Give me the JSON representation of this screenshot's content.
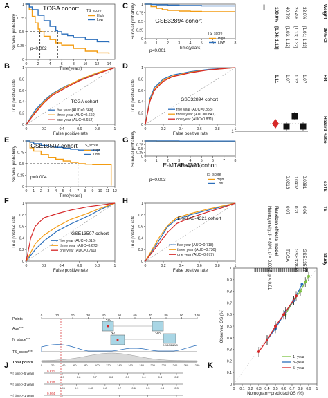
{
  "figure": {
    "panel_letters": [
      "A",
      "B",
      "C",
      "D",
      "E",
      "F",
      "G",
      "H",
      "I",
      "J",
      "K"
    ]
  },
  "chart_data": [
    {
      "panel": "A",
      "type": "line",
      "title": "TCGA cohort",
      "xlabel": "Time(years)",
      "ylabel": "Survival probability",
      "xlim": [
        0,
        15
      ],
      "ylim": [
        0,
        1
      ],
      "xticks": [
        0,
        2,
        4,
        6,
        8,
        10,
        12,
        14
      ],
      "yticks": [
        0,
        0.25,
        0.5,
        0.75,
        1
      ],
      "legend_title": "TS_score",
      "pvalue": "p=0.002",
      "median_lines_x": [
        2.3,
        5.3
      ],
      "series": [
        {
          "name": "High",
          "color": "#f39c12",
          "x": [
            0,
            0.5,
            1,
            1.5,
            2,
            2.3,
            3,
            4,
            5,
            6,
            8,
            10,
            12,
            14
          ],
          "y": [
            1,
            0.9,
            0.78,
            0.66,
            0.55,
            0.5,
            0.42,
            0.36,
            0.3,
            0.26,
            0.2,
            0.15,
            0.12,
            0.1
          ]
        },
        {
          "name": "Low",
          "color": "#2c6fbb",
          "x": [
            0,
            0.5,
            1,
            2,
            3,
            4,
            5,
            5.3,
            6,
            7,
            8,
            10,
            12,
            14
          ],
          "y": [
            1,
            0.95,
            0.9,
            0.8,
            0.7,
            0.6,
            0.52,
            0.5,
            0.46,
            0.43,
            0.4,
            0.36,
            0.32,
            0.3
          ]
        }
      ]
    },
    {
      "panel": "B",
      "type": "line",
      "title": "TCGA cohort",
      "xlabel": "False positive rate",
      "ylabel": "True positive rate",
      "xlim": [
        0,
        1
      ],
      "ylim": [
        0,
        1
      ],
      "xticks": [
        0,
        0.2,
        0.4,
        0.6,
        0.8,
        1
      ],
      "yticks": [
        0,
        0.2,
        0.4,
        0.6,
        0.8,
        1
      ],
      "series": [
        {
          "name": "five year (AUC=0.660)",
          "color": "#2c6fbb",
          "x": [
            0,
            0.1,
            0.2,
            0.3,
            0.45,
            0.6,
            0.8,
            1
          ],
          "y": [
            0,
            0.25,
            0.42,
            0.55,
            0.68,
            0.78,
            0.9,
            1
          ]
        },
        {
          "name": "three year (AUC=0.660)",
          "color": "#f39c12",
          "x": [
            0,
            0.1,
            0.2,
            0.3,
            0.45,
            0.6,
            0.8,
            1
          ],
          "y": [
            0,
            0.22,
            0.4,
            0.54,
            0.67,
            0.79,
            0.91,
            1
          ]
        },
        {
          "name": "one year (AUC=0.652)",
          "color": "#d62728",
          "x": [
            0,
            0.1,
            0.2,
            0.3,
            0.45,
            0.6,
            0.8,
            1
          ],
          "y": [
            0,
            0.2,
            0.38,
            0.52,
            0.65,
            0.77,
            0.89,
            1
          ]
        }
      ]
    },
    {
      "panel": "C",
      "type": "line",
      "title": "GSE32894 cohort",
      "xlabel": "Time(years)",
      "ylabel": "Survival probability",
      "xlim": [
        0,
        8
      ],
      "ylim": [
        0,
        1
      ],
      "xticks": [
        0,
        1,
        2,
        3,
        4,
        5,
        6,
        7,
        8
      ],
      "yticks": [
        0,
        0.25,
        0.5,
        0.75,
        1
      ],
      "legend_title": "TS_score",
      "pvalue": "p<0.001",
      "series": [
        {
          "name": "High",
          "color": "#f39c12",
          "x": [
            0,
            0.5,
            1,
            1.5,
            2,
            3,
            4,
            5,
            6,
            7,
            8
          ],
          "y": [
            1,
            0.93,
            0.88,
            0.84,
            0.82,
            0.8,
            0.79,
            0.78,
            0.78,
            0.78,
            0.78
          ]
        },
        {
          "name": "Low",
          "color": "#2c6fbb",
          "x": [
            0,
            0.5,
            1,
            2,
            3,
            4,
            5,
            6,
            7,
            8
          ],
          "y": [
            1,
            0.99,
            0.98,
            0.97,
            0.96,
            0.96,
            0.95,
            0.95,
            0.95,
            0.95
          ]
        }
      ]
    },
    {
      "panel": "D",
      "type": "line",
      "title": "GSE32894 cohort",
      "xlabel": "False positive rate",
      "ylabel": "True positive rate",
      "xlim": [
        0,
        1
      ],
      "ylim": [
        0,
        1
      ],
      "xticks": [
        0,
        0.2,
        0.4,
        0.6,
        0.8,
        1
      ],
      "yticks": [
        0,
        0.2,
        0.4,
        0.6,
        0.8,
        1
      ],
      "series": [
        {
          "name": "five year (AUC=0.858)",
          "color": "#2c6fbb",
          "x": [
            0,
            0.05,
            0.1,
            0.2,
            0.3,
            0.5,
            0.7,
            1
          ],
          "y": [
            0,
            0.45,
            0.65,
            0.8,
            0.87,
            0.93,
            0.97,
            1
          ]
        },
        {
          "name": "three year (AUC=0.841)",
          "color": "#f39c12",
          "x": [
            0,
            0.05,
            0.1,
            0.2,
            0.3,
            0.5,
            0.7,
            1
          ],
          "y": [
            0,
            0.42,
            0.62,
            0.78,
            0.85,
            0.92,
            0.96,
            1
          ]
        },
        {
          "name": "one year (AUC=0.831)",
          "color": "#d62728",
          "x": [
            0,
            0.05,
            0.1,
            0.2,
            0.3,
            0.5,
            0.7,
            1
          ],
          "y": [
            0,
            0.4,
            0.6,
            0.76,
            0.84,
            0.91,
            0.96,
            1
          ]
        }
      ]
    },
    {
      "panel": "E",
      "type": "line",
      "title": "GSE13507 cohort",
      "xlabel": "Time(years)",
      "ylabel": "Survival probability",
      "xlim": [
        0,
        12
      ],
      "ylim": [
        0,
        1
      ],
      "xticks": [
        0,
        1,
        2,
        3,
        4,
        5,
        6,
        7,
        8,
        9,
        10,
        11,
        12
      ],
      "yticks": [
        0,
        0.25,
        0.5,
        0.75,
        1
      ],
      "legend_title": "TS_score",
      "pvalue": "p=0.004",
      "median_lines_x": [
        7
      ],
      "series": [
        {
          "name": "High",
          "color": "#f39c12",
          "x": [
            0,
            0.5,
            1,
            2,
            3,
            4,
            5,
            6,
            7,
            8,
            9,
            10,
            11,
            11.5
          ],
          "y": [
            1,
            0.85,
            0.78,
            0.7,
            0.64,
            0.6,
            0.56,
            0.53,
            0.5,
            0.49,
            0.48,
            0.48,
            0.48,
            0.02
          ]
        },
        {
          "name": "Low",
          "color": "#2c6fbb",
          "x": [
            0,
            0.5,
            1,
            2,
            3,
            4,
            5,
            6,
            7,
            8,
            9,
            10
          ],
          "y": [
            1,
            0.97,
            0.94,
            0.9,
            0.88,
            0.86,
            0.84,
            0.82,
            0.8,
            0.8,
            0.8,
            0.8
          ]
        }
      ]
    },
    {
      "panel": "F",
      "type": "line",
      "title": "GSE13507 cohort",
      "xlabel": "False positive rate",
      "ylabel": "True positive rate",
      "xlim": [
        0,
        1
      ],
      "ylim": [
        0,
        1
      ],
      "xticks": [
        0,
        0.2,
        0.4,
        0.6,
        0.8,
        1
      ],
      "yticks": [
        0,
        0.2,
        0.4,
        0.6,
        0.8,
        1
      ],
      "series": [
        {
          "name": "five year (AUC=0.616)",
          "color": "#2c6fbb",
          "x": [
            0,
            0.1,
            0.2,
            0.35,
            0.5,
            0.7,
            0.85,
            1
          ],
          "y": [
            0,
            0.2,
            0.35,
            0.52,
            0.64,
            0.78,
            0.9,
            1
          ]
        },
        {
          "name": "three year (AUC=0.673)",
          "color": "#f39c12",
          "x": [
            0,
            0.1,
            0.2,
            0.35,
            0.5,
            0.7,
            0.85,
            1
          ],
          "y": [
            0,
            0.3,
            0.45,
            0.6,
            0.72,
            0.83,
            0.92,
            1
          ]
        },
        {
          "name": "one year (AUC=0.761)",
          "color": "#d62728",
          "x": [
            0,
            0.05,
            0.1,
            0.2,
            0.35,
            0.5,
            0.7,
            1
          ],
          "y": [
            0,
            0.4,
            0.6,
            0.75,
            0.82,
            0.88,
            0.94,
            1
          ]
        }
      ]
    },
    {
      "panel": "G",
      "type": "line",
      "title": "E-MTAB-4321 cohort",
      "xlabel": "Time(years)",
      "ylabel": "Survival probability",
      "xlim": [
        0,
        8
      ],
      "ylim": [
        0,
        1
      ],
      "xticks": [
        0,
        1,
        2,
        3,
        4,
        5,
        6,
        7,
        8
      ],
      "yticks": [
        0,
        0.25,
        0.5,
        0.75,
        1
      ],
      "legend_title": "TS_score",
      "pvalue": "p=0.003",
      "series": [
        {
          "name": "High",
          "color": "#f39c12",
          "x": [
            0,
            1,
            2,
            3,
            4,
            5,
            6,
            7,
            8
          ],
          "y": [
            1,
            0.98,
            0.97,
            0.96,
            0.95,
            0.95,
            0.94,
            0.94,
            0.94
          ]
        },
        {
          "name": "Low",
          "color": "#2c6fbb",
          "x": [
            0,
            1,
            2,
            3,
            4,
            5,
            6,
            7,
            8
          ],
          "y": [
            1,
            1,
            1,
            0.99,
            0.99,
            0.99,
            0.99,
            0.99,
            0.99
          ]
        }
      ]
    },
    {
      "panel": "H",
      "type": "line",
      "title": "E-MTAB-4321 cohort",
      "xlabel": "False positive rate",
      "ylabel": "True positive rate",
      "xlim": [
        0,
        1
      ],
      "ylim": [
        0,
        1
      ],
      "xticks": [
        0,
        0.2,
        0.4,
        0.6,
        0.8,
        1
      ],
      "yticks": [
        0,
        0.2,
        0.4,
        0.6,
        0.8,
        1
      ],
      "series": [
        {
          "name": "five year (AUC=0.718)",
          "color": "#2c6fbb",
          "x": [
            0,
            0.15,
            0.25,
            0.35,
            0.5,
            0.7,
            0.85,
            1
          ],
          "y": [
            0,
            0.35,
            0.6,
            0.72,
            0.8,
            0.88,
            0.94,
            1
          ]
        },
        {
          "name": "three year (AUC=0.730)",
          "color": "#f39c12",
          "x": [
            0,
            0.15,
            0.25,
            0.35,
            0.5,
            0.7,
            0.85,
            1
          ],
          "y": [
            0,
            0.4,
            0.62,
            0.75,
            0.82,
            0.9,
            0.95,
            1
          ]
        },
        {
          "name": "one year (AUC=0.679)",
          "color": "#d62728",
          "x": [
            0,
            0.15,
            0.25,
            0.35,
            0.5,
            0.7,
            0.85,
            1
          ],
          "y": [
            0,
            0.3,
            0.5,
            0.65,
            0.75,
            0.85,
            0.92,
            1
          ]
        }
      ]
    },
    {
      "panel": "I",
      "type": "table",
      "subtype": "forest_plot",
      "columns": [
        "Study",
        "TE",
        "seTE",
        "Hazard Ratio",
        "HR",
        "95%-CI",
        "Weight"
      ],
      "rows": [
        {
          "study": "GSE13507",
          "te": "0.06",
          "sete": "0.0281",
          "hr": "1.07",
          "ci": "[1.01; 1.13]",
          "weight": "33.0%",
          "value": 1.07
        },
        {
          "study": "GSE32894",
          "te": "0.20",
          "sete": "0.0402",
          "hr": "1.22",
          "ci": "[1.13; 1.32]",
          "weight": "26.4%",
          "value": 1.22
        },
        {
          "study": "TCGA",
          "te": "0.07",
          "sete": "0.0216",
          "hr": "1.07",
          "ci": "[1.03; 1.12]",
          "weight": "40.7%",
          "value": 1.07
        }
      ],
      "pooled": {
        "label": "Random effects model",
        "hr": "1.11",
        "ci": "[1.04; 1.18]",
        "weight": "100.0%",
        "value": 1.11,
        "lo": 1.04,
        "hi": 1.18
      },
      "heterogeneity": "Heterogeneity: I² = 80%, τ² = 0.0025, p < 0.01",
      "axis_ticks": [
        1
      ],
      "axis_label": "Hazard Ratio"
    },
    {
      "panel": "J",
      "type": "table",
      "subtype": "nomogram",
      "rows": [
        "Points",
        "Age***",
        "N_stage***",
        "TS_score***",
        "Total points",
        "Pr( time > 5 year)",
        "Pr( time > 3 year)",
        "Pr( time > 1 year)"
      ],
      "points_ticks": [
        "0",
        "10",
        "20",
        "30",
        "40",
        "50",
        "60",
        "70",
        "80",
        "90",
        "100"
      ],
      "total_ticks": [
        "0",
        "20",
        "40",
        "60",
        "80",
        "100",
        "120",
        "140",
        "160",
        "180",
        "200",
        "220",
        "240",
        "260",
        "280"
      ],
      "age_labels": [
        "<60",
        ">60"
      ],
      "nstage_labels": [
        "N0",
        "N1&N2&N3"
      ],
      "red_values": [
        "0.871",
        "0.920",
        "0.964"
      ],
      "pr5_ticks": [
        "0.9",
        "0.8",
        "0.7",
        "0.6",
        "0.5",
        "0.4",
        "0.3",
        "0.2"
      ],
      "pr3_ticks": [
        "0.95",
        "0.9",
        "0.85",
        "0.8",
        "0.7",
        "0.6",
        "0.5",
        "0.4",
        "0.3"
      ],
      "pr1_ticks": [
        "0.95",
        "0.9",
        "0.85",
        "0.8",
        "0.7"
      ]
    },
    {
      "panel": "K",
      "type": "line",
      "xlabel": "Nomogram−predicted OS (%)",
      "ylabel": "Observed OS (%)",
      "xlim": [
        0,
        1
      ],
      "ylim": [
        0,
        1
      ],
      "xticks": [
        0,
        0.1,
        0.2,
        0.3,
        0.4,
        0.5,
        0.6,
        0.7,
        0.8,
        0.9,
        1.0
      ],
      "yticks": [
        0,
        0.1,
        0.2,
        0.3,
        0.4,
        0.5,
        0.6,
        0.7,
        0.8,
        0.9,
        1.0
      ],
      "series": [
        {
          "name": "1−year",
          "color": "#7dc242",
          "x": [
            0.62,
            0.72,
            0.8,
            0.86,
            0.9
          ],
          "y": [
            0.6,
            0.72,
            0.8,
            0.88,
            0.93
          ]
        },
        {
          "name": "3−year",
          "color": "#2c6fbb",
          "x": [
            0.4,
            0.5,
            0.62,
            0.72,
            0.82
          ],
          "y": [
            0.38,
            0.48,
            0.62,
            0.72,
            0.86
          ]
        },
        {
          "name": "5−year",
          "color": "#d62728",
          "x": [
            0.3,
            0.4,
            0.5,
            0.6,
            0.75
          ],
          "y": [
            0.28,
            0.38,
            0.5,
            0.6,
            0.76
          ]
        }
      ]
    }
  ]
}
